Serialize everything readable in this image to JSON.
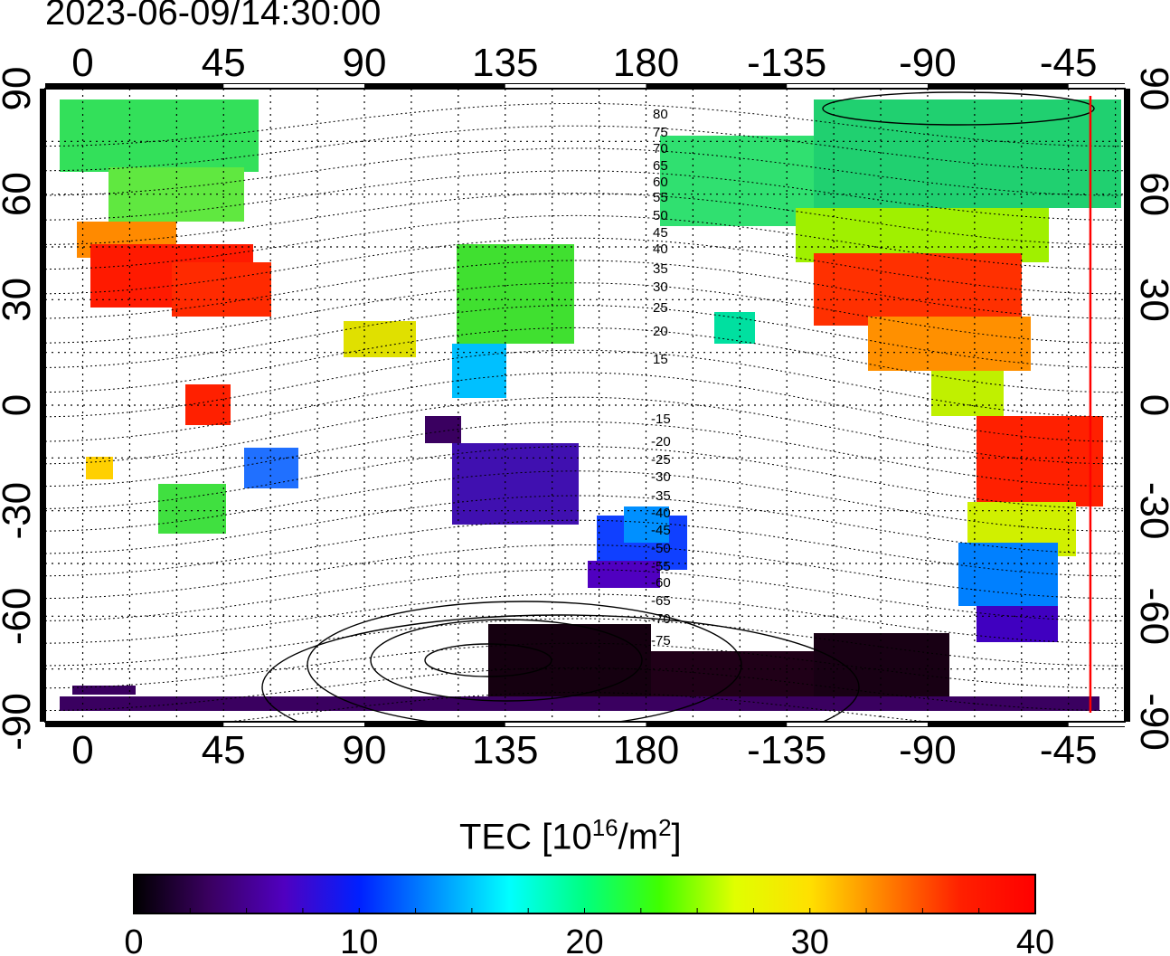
{
  "timestamp": "2023-06-09/14:30:00",
  "map": {
    "lon_labels": [
      "0",
      "45",
      "90",
      "135",
      "180",
      "-135",
      "-90",
      "-45"
    ],
    "lat_labels": [
      "90",
      "60",
      "30",
      "0",
      "-30",
      "-60",
      "-90"
    ],
    "lat_values": [
      90,
      60,
      30,
      0,
      -30,
      -60,
      -90
    ],
    "lon_values_deg": [
      0,
      45,
      90,
      135,
      180,
      225,
      270,
      315
    ],
    "lon_range_deg": [
      -12,
      333
    ],
    "lat_range_deg": [
      -90,
      90
    ],
    "grid": true,
    "marker_longitude_deg": -38,
    "marker_color": "#ff0000"
  },
  "contours": {
    "north_labels": [
      "80",
      "75",
      "70",
      "65",
      "60",
      "55",
      "50",
      "45",
      "40",
      "35",
      "30",
      "25",
      "20",
      "15"
    ],
    "south_labels": [
      "-15",
      "-20",
      "-25",
      "-30",
      "-35",
      "-40",
      "-45",
      "-50",
      "-55",
      "-60",
      "-65",
      "-70",
      "-75"
    ]
  },
  "colorbar": {
    "title_main": "TEC  [10",
    "title_exp": "16",
    "title_mid": "/m",
    "title_exp2": "2",
    "title_end": "]",
    "tick_labels": [
      "0",
      "10",
      "20",
      "30",
      "40"
    ],
    "tick_values": [
      0,
      10,
      20,
      30,
      40
    ],
    "range": [
      0,
      40
    ],
    "colormap_stops": [
      "#000000",
      "#3a0060",
      "#5000c0",
      "#0020ff",
      "#0090ff",
      "#00ffff",
      "#00ff80",
      "#40ff00",
      "#e0ff00",
      "#ffe000",
      "#ff8000",
      "#ff2000",
      "#ff0000"
    ]
  }
}
